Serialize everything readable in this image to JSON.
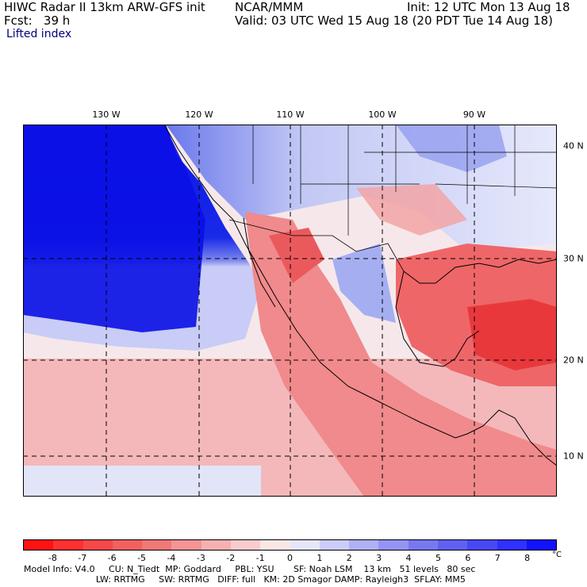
{
  "header": {
    "line1_left": "HIWC Radar II 13km ARW-GFS init",
    "line1_mid": "NCAR/MMM",
    "line1_right": "Init: 12 UTC Mon 13 Aug 18",
    "line2_left": "Fcst:   39 h",
    "line2_right": "Valid: 03 UTC Wed 15 Aug 18 (20 PDT Tue 14 Aug 18)",
    "field": "Lifted index"
  },
  "map": {
    "lon_labels": [
      "130 W",
      "120 W",
      "110 W",
      "100 W",
      "90 W"
    ],
    "lat_labels": [
      "40 N",
      "30 N",
      "20 N",
      "10 N"
    ],
    "colors": {
      "ocean_stable": "#0a14e6",
      "land_line": "#000000",
      "unstable": "#f0686a"
    }
  },
  "colorbar": {
    "ticks": [
      "-8",
      "-7",
      "-6",
      "-5",
      "-4",
      "-3",
      "-2",
      "-1",
      "0",
      "1",
      "2",
      "3",
      "4",
      "5",
      "6",
      "7",
      "8"
    ],
    "unit": "°C",
    "colors": [
      "#ff1212",
      "#ff3030",
      "#f64848",
      "#f26060",
      "#f27878",
      "#f49494",
      "#f6b0b0",
      "#f8cccc",
      "#fbe6e6",
      "#e6e6fb",
      "#ccccf8",
      "#b0b0f6",
      "#9494f4",
      "#7878f2",
      "#6060f2",
      "#4848f6",
      "#3030ff",
      "#1212ff"
    ]
  },
  "footer": {
    "line1": "Model Info: V4.0     CU: N_Tiedt  MP: Goddard     PBL: YSU       SF: Noah LSM    13 km   51 levels   80 sec",
    "line2": "                          LW: RRTMG     SW: RRTMG   DIFF: full   KM: 2D Smagor DAMP: Rayleigh3  SFLAY: MM5"
  }
}
